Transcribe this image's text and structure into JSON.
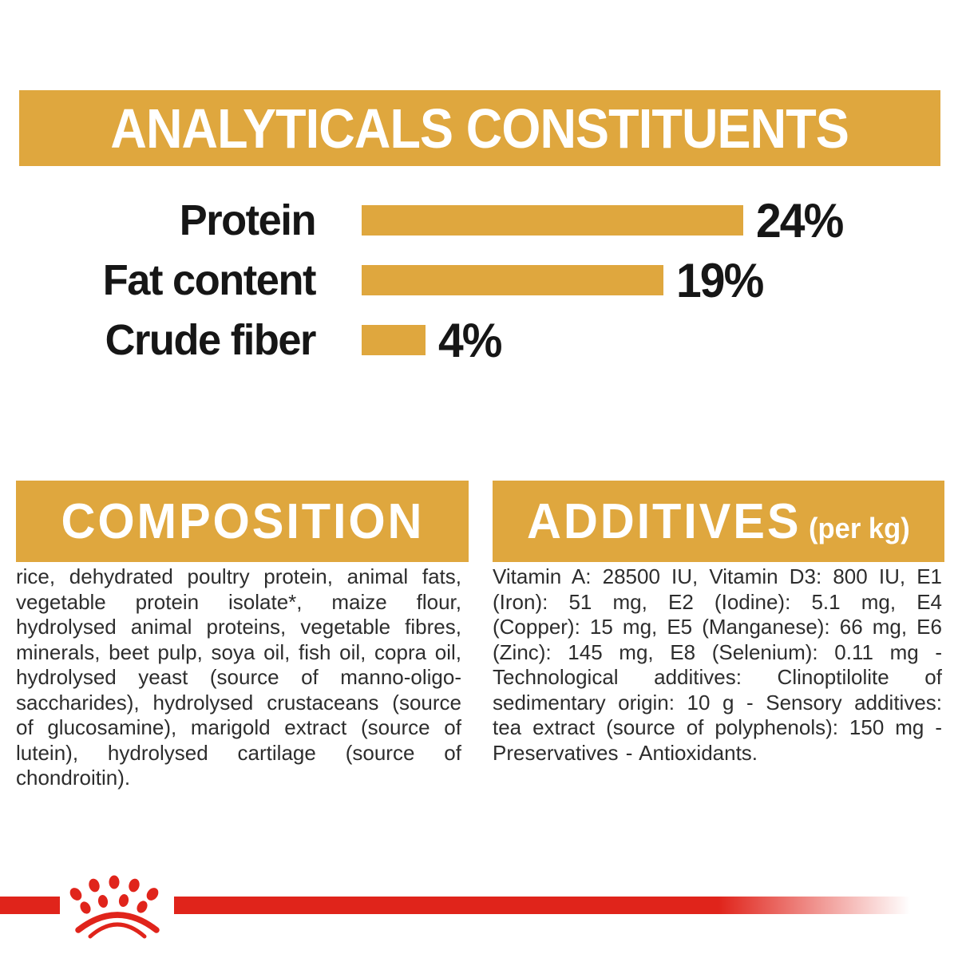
{
  "colors": {
    "gold": "#DFA73E",
    "red": "#E0241B",
    "white": "#FFFFFF",
    "text_dark": "#2D2D2D",
    "label_black": "#161616"
  },
  "header": {
    "title": "ANALYTICALS CONSTITUENTS"
  },
  "chart_data": {
    "type": "bar",
    "orientation": "horizontal",
    "title": "ANALYTICALS CONSTITUENTS",
    "categories": [
      "Protein",
      "Fat content",
      "Crude fiber"
    ],
    "values": [
      24,
      19,
      4
    ],
    "value_labels": [
      "24%",
      "19%",
      "4%"
    ],
    "unit": "%",
    "xlim": [
      0,
      24
    ],
    "bar_color": "#DFA73E",
    "grid": false,
    "legend": false
  },
  "sections": {
    "composition": {
      "title": "COMPOSITION",
      "body": "rice, dehydrated poultry protein, animal fats, vegetable protein isolate*, maize flour, hydrolysed animal proteins, vegetable fibres, minerals, beet pulp, soya oil, fish oil, copra oil, hydrolysed yeast (source of manno-oligo-saccharides), hydrolysed crustaceans (source of glucosamine), marigold extract (source of lutein), hydrolysed cartilage (source of chondroitin)."
    },
    "additives": {
      "title": "ADDITIVES",
      "title_suffix": "(per kg)",
      "body": "Vitamin A: 28500 IU, Vitamin D3: 800 IU, E1 (Iron): 51 mg, E2 (Iodine): 5.1 mg, E4 (Copper): 15 mg, E5 (Manganese): 66 mg, E6 (Zinc): 145 mg, E8 (Selenium): 0.11 mg - Technological additives: Clinoptilolite of sedimentary origin: 10 g - Sensory additives: tea extract (source of polyphenols): 150 mg - Preservatives - Antioxidants."
    }
  },
  "footer": {
    "logo": "royal-canin-crown"
  }
}
